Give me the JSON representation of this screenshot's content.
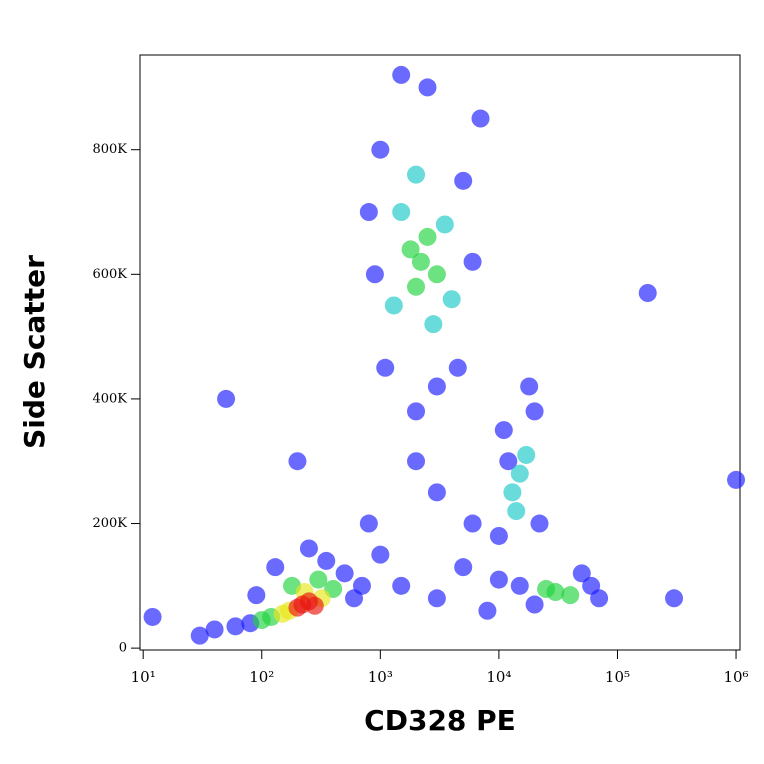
{
  "chart_data": {
    "type": "scatter",
    "xlabel": "CD328 PE",
    "ylabel": "Side Scatter",
    "xscale": "log",
    "xlim": [
      9.4,
      1080000
    ],
    "ylim": [
      -3000,
      952000
    ],
    "xticks": [
      {
        "value": 10,
        "label": "10¹"
      },
      {
        "value": 100,
        "label": "10²"
      },
      {
        "value": 1000,
        "label": "10³"
      },
      {
        "value": 10000,
        "label": "10⁴"
      },
      {
        "value": 100000,
        "label": "10⁵"
      },
      {
        "value": 1000000,
        "label": "10⁶"
      }
    ],
    "yticks": [
      0,
      {
        "value": 200000,
        "label": "200K"
      },
      {
        "value": 400000,
        "label": "400K"
      },
      {
        "value": 600000,
        "label": "600K"
      },
      {
        "value": 800000,
        "label": "800K"
      }
    ],
    "series": [
      {
        "color": "#1a1aff",
        "x": [
          80,
          500,
          60,
          350,
          130,
          600,
          40,
          700,
          250,
          90,
          1000,
          5000,
          900,
          6000,
          1100,
          4500,
          2500,
          1500,
          7000,
          800,
          3000,
          2000,
          11000,
          20000,
          10000,
          22000,
          18000,
          12000,
          15000,
          60000,
          20000,
          50000,
          10000,
          70000,
          1500,
          3000,
          1000,
          5000,
          3000,
          2000,
          6000,
          800,
          200,
          50,
          180000,
          1000000,
          300000,
          12,
          30,
          8000
        ],
        "values": [
          40000,
          120000,
          35000,
          140000,
          130000,
          80000,
          30000,
          100000,
          160000,
          85000,
          800000,
          750000,
          600000,
          620000,
          450000,
          450000,
          900000,
          920000,
          850000,
          700000,
          420000,
          380000,
          350000,
          380000,
          180000,
          200000,
          420000,
          300000,
          100000,
          100000,
          70000,
          120000,
          110000,
          80000,
          100000,
          80000,
          150000,
          130000,
          250000,
          300000,
          200000,
          200000,
          300000,
          400000,
          570000,
          270000,
          80000,
          50000,
          20000,
          60000
        ]
      },
      {
        "color": "#19c8c8",
        "x": [
          1500,
          3500,
          1300,
          2800,
          2000,
          4000,
          15000,
          13000,
          17000,
          14000
        ],
        "values": [
          700000,
          680000,
          550000,
          520000,
          760000,
          560000,
          280000,
          250000,
          310000,
          220000
        ]
      },
      {
        "color": "#1ed23c",
        "x": [
          120,
          400,
          300,
          100,
          180,
          2200,
          2000,
          2500,
          1800,
          3000,
          30000,
          25000,
          40000
        ],
        "values": [
          50000,
          95000,
          110000,
          45000,
          100000,
          620000,
          580000,
          660000,
          640000,
          600000,
          90000,
          95000,
          85000
        ]
      },
      {
        "color": "#e6e619",
        "x": [
          170,
          320,
          230,
          150
        ],
        "values": [
          60000,
          80000,
          90000,
          55000
        ]
      },
      {
        "color": "#e8160c",
        "x": [
          220,
          250,
          200,
          280
        ],
        "values": [
          70000,
          75000,
          65000,
          68000
        ]
      }
    ]
  }
}
